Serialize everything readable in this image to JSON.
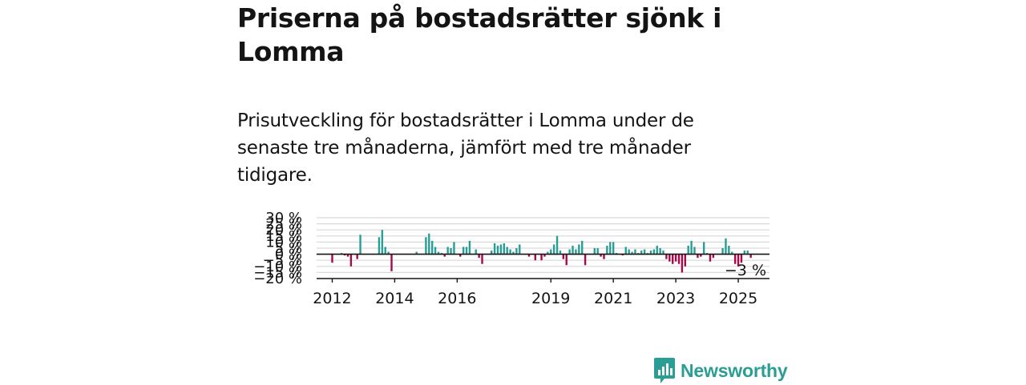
{
  "header": {
    "title": "Priserna på bostadsrätter sjönk i Lomma",
    "subtitle": "Prisutveckling för bostadsrätter i Lomma under de senaste tre månaderna, jämfört med tre månader tidigare."
  },
  "brand": {
    "name": "Newsworthy",
    "color": "#2a9d95"
  },
  "colors": {
    "positive": "#2a9d95",
    "negative": "#a6094b",
    "grid": "#d9d9d9",
    "axis": "#141414"
  },
  "chart_data": {
    "type": "bar",
    "title": "",
    "xlabel": "",
    "ylabel": "",
    "ylim": [
      -20,
      30
    ],
    "y_ticks": [
      30,
      25,
      20,
      15,
      10,
      5,
      0,
      -5,
      -10,
      -15,
      -20
    ],
    "y_tick_labels": [
      "30 %",
      "25 %",
      "20 %",
      "15 %",
      "10 %",
      "5 %",
      "0 %",
      "−5 %",
      "−10 %",
      "−15 %",
      "−20 %"
    ],
    "x_ticks": [
      2012,
      2014,
      2016,
      2019,
      2021,
      2023,
      2025
    ],
    "x_range": [
      2011.5,
      2026.0
    ],
    "grid": true,
    "last_value_label": "−3 %",
    "series": [
      {
        "x": [
          2012.0,
          2012.1,
          2012.2,
          2012.3,
          2012.4,
          2012.5,
          2012.6,
          2012.7,
          2012.8,
          2012.9,
          2013.0,
          2013.5,
          2013.6,
          2013.7,
          2013.8,
          2013.9,
          2014.7,
          2015.0,
          2015.1,
          2015.2,
          2015.3,
          2015.4,
          2015.5,
          2015.6,
          2015.7,
          2015.8,
          2015.9,
          2016.0,
          2016.1,
          2016.2,
          2016.3,
          2016.4,
          2016.5,
          2016.6,
          2016.7,
          2016.8,
          2017.0,
          2017.1,
          2017.2,
          2017.3,
          2017.4,
          2017.5,
          2017.6,
          2017.7,
          2017.8,
          2017.9,
          2018.0,
          2018.2,
          2018.3,
          2018.4,
          2018.5,
          2018.7,
          2018.8,
          2018.9,
          2019.0,
          2019.1,
          2019.2,
          2019.3,
          2019.4,
          2019.5,
          2019.6,
          2019.7,
          2019.8,
          2019.9,
          2020.0,
          2020.1,
          2020.3,
          2020.4,
          2020.5,
          2020.6,
          2020.7,
          2020.8,
          2020.9,
          2021.0,
          2021.1,
          2021.3,
          2021.4,
          2021.5,
          2021.6,
          2021.7,
          2021.8,
          2021.9,
          2022.0,
          2022.1,
          2022.2,
          2022.3,
          2022.4,
          2022.5,
          2022.6,
          2022.7,
          2022.8,
          2022.9,
          2023.0,
          2023.1,
          2023.2,
          2023.3,
          2023.4,
          2023.5,
          2023.6,
          2023.7,
          2023.8,
          2023.9,
          2024.0,
          2024.1,
          2024.2,
          2024.5,
          2024.6,
          2024.7,
          2024.8,
          2024.9,
          2025.0,
          2025.1,
          2025.2,
          2025.3,
          2025.4
        ],
        "values": [
          -7,
          0,
          0,
          1,
          -1,
          -2,
          -10,
          0,
          -4,
          16,
          0,
          14,
          20,
          6,
          2,
          -14,
          2,
          14,
          17,
          11,
          6,
          2,
          1,
          -2,
          6,
          5,
          10,
          0,
          -2,
          6,
          6,
          11,
          0,
          4,
          -3,
          -8,
          0,
          3,
          9,
          7,
          8,
          9,
          6,
          4,
          2,
          5,
          8,
          0,
          -2,
          0,
          -5,
          -5,
          -2,
          2,
          4,
          8,
          15,
          3,
          -4,
          -9,
          4,
          7,
          4,
          8,
          11,
          -9,
          0,
          5,
          5,
          -2,
          -4,
          7,
          10,
          10,
          1,
          -1,
          6,
          4,
          2,
          4,
          1,
          3,
          4,
          1,
          3,
          4,
          7,
          5,
          3,
          -4,
          -6,
          -8,
          -6,
          -8,
          -15,
          -10,
          7,
          11,
          6,
          -3,
          -2,
          10,
          1,
          -6,
          -3,
          5,
          13,
          7,
          2,
          -8,
          -10,
          -7,
          3,
          3,
          -3
        ]
      }
    ]
  }
}
